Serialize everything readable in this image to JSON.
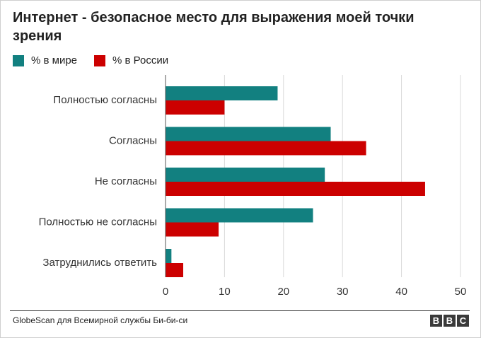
{
  "title": "Интернет - безопасное место для выражения моей точки зрения",
  "source": "GlobeScan для Всемирной службы Би-би-си",
  "logo": [
    "B",
    "B",
    "C"
  ],
  "colors": {
    "world": "#128080",
    "russia": "#cc0000",
    "grid": "#d9d9d9",
    "axis": "#555555"
  },
  "chart_data": {
    "type": "bar",
    "orientation": "horizontal",
    "categories": [
      "Полностью согласны",
      "Согласны",
      "Не согласны",
      "Полностью не согласны",
      "Затруднились ответить"
    ],
    "series": [
      {
        "name": "% в мире",
        "values": [
          19,
          28,
          27,
          25,
          1
        ]
      },
      {
        "name": "% в России",
        "values": [
          10,
          34,
          44,
          9,
          3
        ]
      }
    ],
    "xlim": [
      0,
      50
    ],
    "xticks": [
      0,
      10,
      20,
      30,
      40,
      50
    ],
    "grid": true,
    "legend": "top-left",
    "title": "Интернет - безопасное место для выражения моей точки зрения"
  }
}
